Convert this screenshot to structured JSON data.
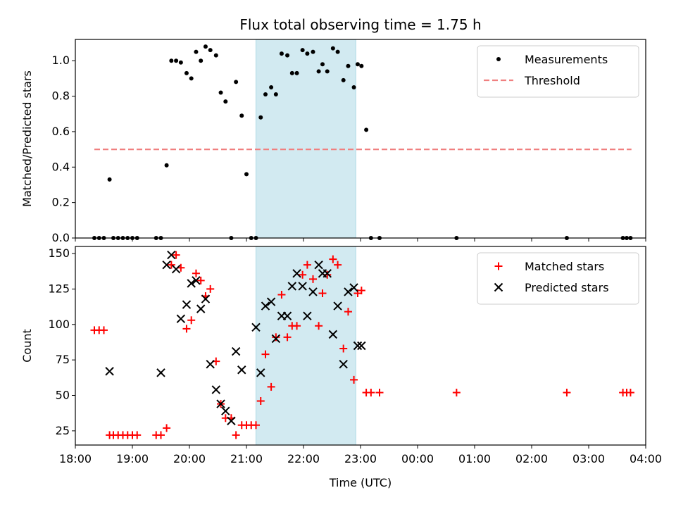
{
  "chart_data": [
    {
      "type": "scatter",
      "title": "Flux total observing time = 1.75 h",
      "xlabel": "",
      "ylabel": "Matched/Predicted stars",
      "xlim": [
        "18:00",
        "04:00"
      ],
      "ylim": [
        0,
        1.12
      ],
      "yticks": [
        "0.0",
        "0.2",
        "0.4",
        "0.6",
        "0.8",
        "1.0"
      ],
      "shaded_interval": {
        "start": "21:10",
        "end": "22:55",
        "color": "#add8e6"
      },
      "legend": {
        "placement": "top-right",
        "entries": [
          "Measurements",
          "Threshold"
        ]
      },
      "series": [
        {
          "name": "Measurements",
          "marker": "dot",
          "color": "#000000",
          "x": [
            "18:20",
            "18:25",
            "18:30",
            "18:36",
            "18:40",
            "18:45",
            "18:50",
            "18:55",
            "19:00",
            "19:05",
            "19:25",
            "19:30",
            "19:36",
            "19:41",
            "19:46",
            "19:51",
            "19:57",
            "20:02",
            "20:07",
            "20:12",
            "20:17",
            "20:22",
            "20:28",
            "20:33",
            "20:38",
            "20:44",
            "20:49",
            "20:55",
            "21:00",
            "21:05",
            "21:10",
            "21:15",
            "21:20",
            "21:26",
            "21:31",
            "21:37",
            "21:43",
            "21:48",
            "21:53",
            "21:59",
            "22:04",
            "22:10",
            "22:16",
            "22:20",
            "22:25",
            "22:31",
            "22:36",
            "22:42",
            "22:47",
            "22:53",
            "22:57",
            "23:01",
            "23:06",
            "23:11",
            "23:20",
            "00:41",
            "02:37",
            "03:36",
            "03:40",
            "03:44"
          ],
          "y": [
            0,
            0,
            0,
            0.33,
            0,
            0,
            0,
            0,
            0,
            0,
            0,
            0,
            0.41,
            1.0,
            1.0,
            0.99,
            0.93,
            0.9,
            1.05,
            1.0,
            1.08,
            1.06,
            1.03,
            0.82,
            0.77,
            0,
            0.88,
            0.69,
            0.36,
            0,
            0,
            0.68,
            0.81,
            0.85,
            0.81,
            1.04,
            1.03,
            0.93,
            0.93,
            1.06,
            1.04,
            1.05,
            0.94,
            0.98,
            0.94,
            1.07,
            1.05,
            0.89,
            0.97,
            0.85,
            0.98,
            0.97,
            0.61,
            0,
            0,
            0,
            0,
            0,
            0,
            0
          ]
        },
        {
          "name": "Threshold",
          "style": "dashed",
          "color": "#f08080",
          "x": [
            "18:20",
            "03:45"
          ],
          "y": [
            0.5,
            0.5
          ]
        }
      ]
    },
    {
      "type": "scatter",
      "title": "",
      "xlabel": "Time (UTC)",
      "ylabel": "Count",
      "xlim": [
        "18:00",
        "04:00"
      ],
      "ylim": [
        15,
        155
      ],
      "xticks": [
        "18:00",
        "19:00",
        "20:00",
        "21:00",
        "22:00",
        "23:00",
        "00:00",
        "01:00",
        "02:00",
        "03:00",
        "04:00"
      ],
      "yticks": [
        "25",
        "50",
        "75",
        "100",
        "125",
        "150"
      ],
      "shaded_interval": {
        "start": "21:10",
        "end": "22:55",
        "color": "#add8e6"
      },
      "legend": {
        "placement": "top-right",
        "entries": [
          "Matched stars",
          "Predicted stars"
        ]
      },
      "series": [
        {
          "name": "Matched stars",
          "marker": "plus",
          "color": "#ff0000",
          "x": [
            "18:20",
            "18:25",
            "18:30",
            "18:36",
            "18:40",
            "18:45",
            "18:50",
            "18:55",
            "19:00",
            "19:05",
            "19:25",
            "19:30",
            "19:36",
            "19:41",
            "19:46",
            "19:51",
            "19:57",
            "20:02",
            "20:07",
            "20:12",
            "20:17",
            "20:22",
            "20:28",
            "20:33",
            "20:38",
            "20:44",
            "20:49",
            "20:55",
            "21:00",
            "21:05",
            "21:10",
            "21:15",
            "21:20",
            "21:26",
            "21:31",
            "21:37",
            "21:43",
            "21:48",
            "21:53",
            "21:59",
            "22:04",
            "22:10",
            "22:16",
            "22:20",
            "22:25",
            "22:31",
            "22:36",
            "22:42",
            "22:47",
            "22:53",
            "22:57",
            "23:01",
            "23:06",
            "23:11",
            "23:20",
            "00:41",
            "02:37",
            "03:36",
            "03:40",
            "03:44"
          ],
          "y": [
            96,
            96,
            96,
            22,
            22,
            22,
            22,
            22,
            22,
            22,
            22,
            22,
            27,
            142,
            149,
            140,
            97,
            103,
            136,
            131,
            120,
            125,
            74,
            44,
            34,
            34,
            22,
            29,
            29,
            29,
            29,
            46,
            79,
            56,
            91,
            121,
            91,
            99,
            99,
            135,
            142,
            132,
            99,
            122,
            135,
            146,
            142,
            83,
            109,
            61,
            122,
            124,
            52,
            52,
            52,
            52,
            52,
            52,
            52,
            52
          ]
        },
        {
          "name": "Predicted stars",
          "marker": "x",
          "color": "#000000",
          "x": [
            "18:36",
            "19:30",
            "19:36",
            "19:41",
            "19:46",
            "19:51",
            "19:57",
            "20:02",
            "20:07",
            "20:12",
            "20:17",
            "20:22",
            "20:28",
            "20:33",
            "20:38",
            "20:44",
            "20:49",
            "20:55",
            "21:10",
            "21:15",
            "21:20",
            "21:26",
            "21:31",
            "21:37",
            "21:43",
            "21:48",
            "21:53",
            "21:59",
            "22:04",
            "22:10",
            "22:16",
            "22:20",
            "22:25",
            "22:31",
            "22:36",
            "22:42",
            "22:47",
            "22:53",
            "22:57",
            "23:01"
          ],
          "y": [
            67,
            66,
            142,
            149,
            139,
            104,
            114,
            129,
            131,
            111,
            118,
            72,
            54,
            44,
            39,
            32,
            81,
            68,
            98,
            66,
            113,
            116,
            90,
            106,
            106,
            127,
            136,
            127,
            106,
            123,
            142,
            136,
            136,
            93,
            113,
            72,
            123,
            126,
            85,
            85
          ]
        }
      ]
    }
  ]
}
